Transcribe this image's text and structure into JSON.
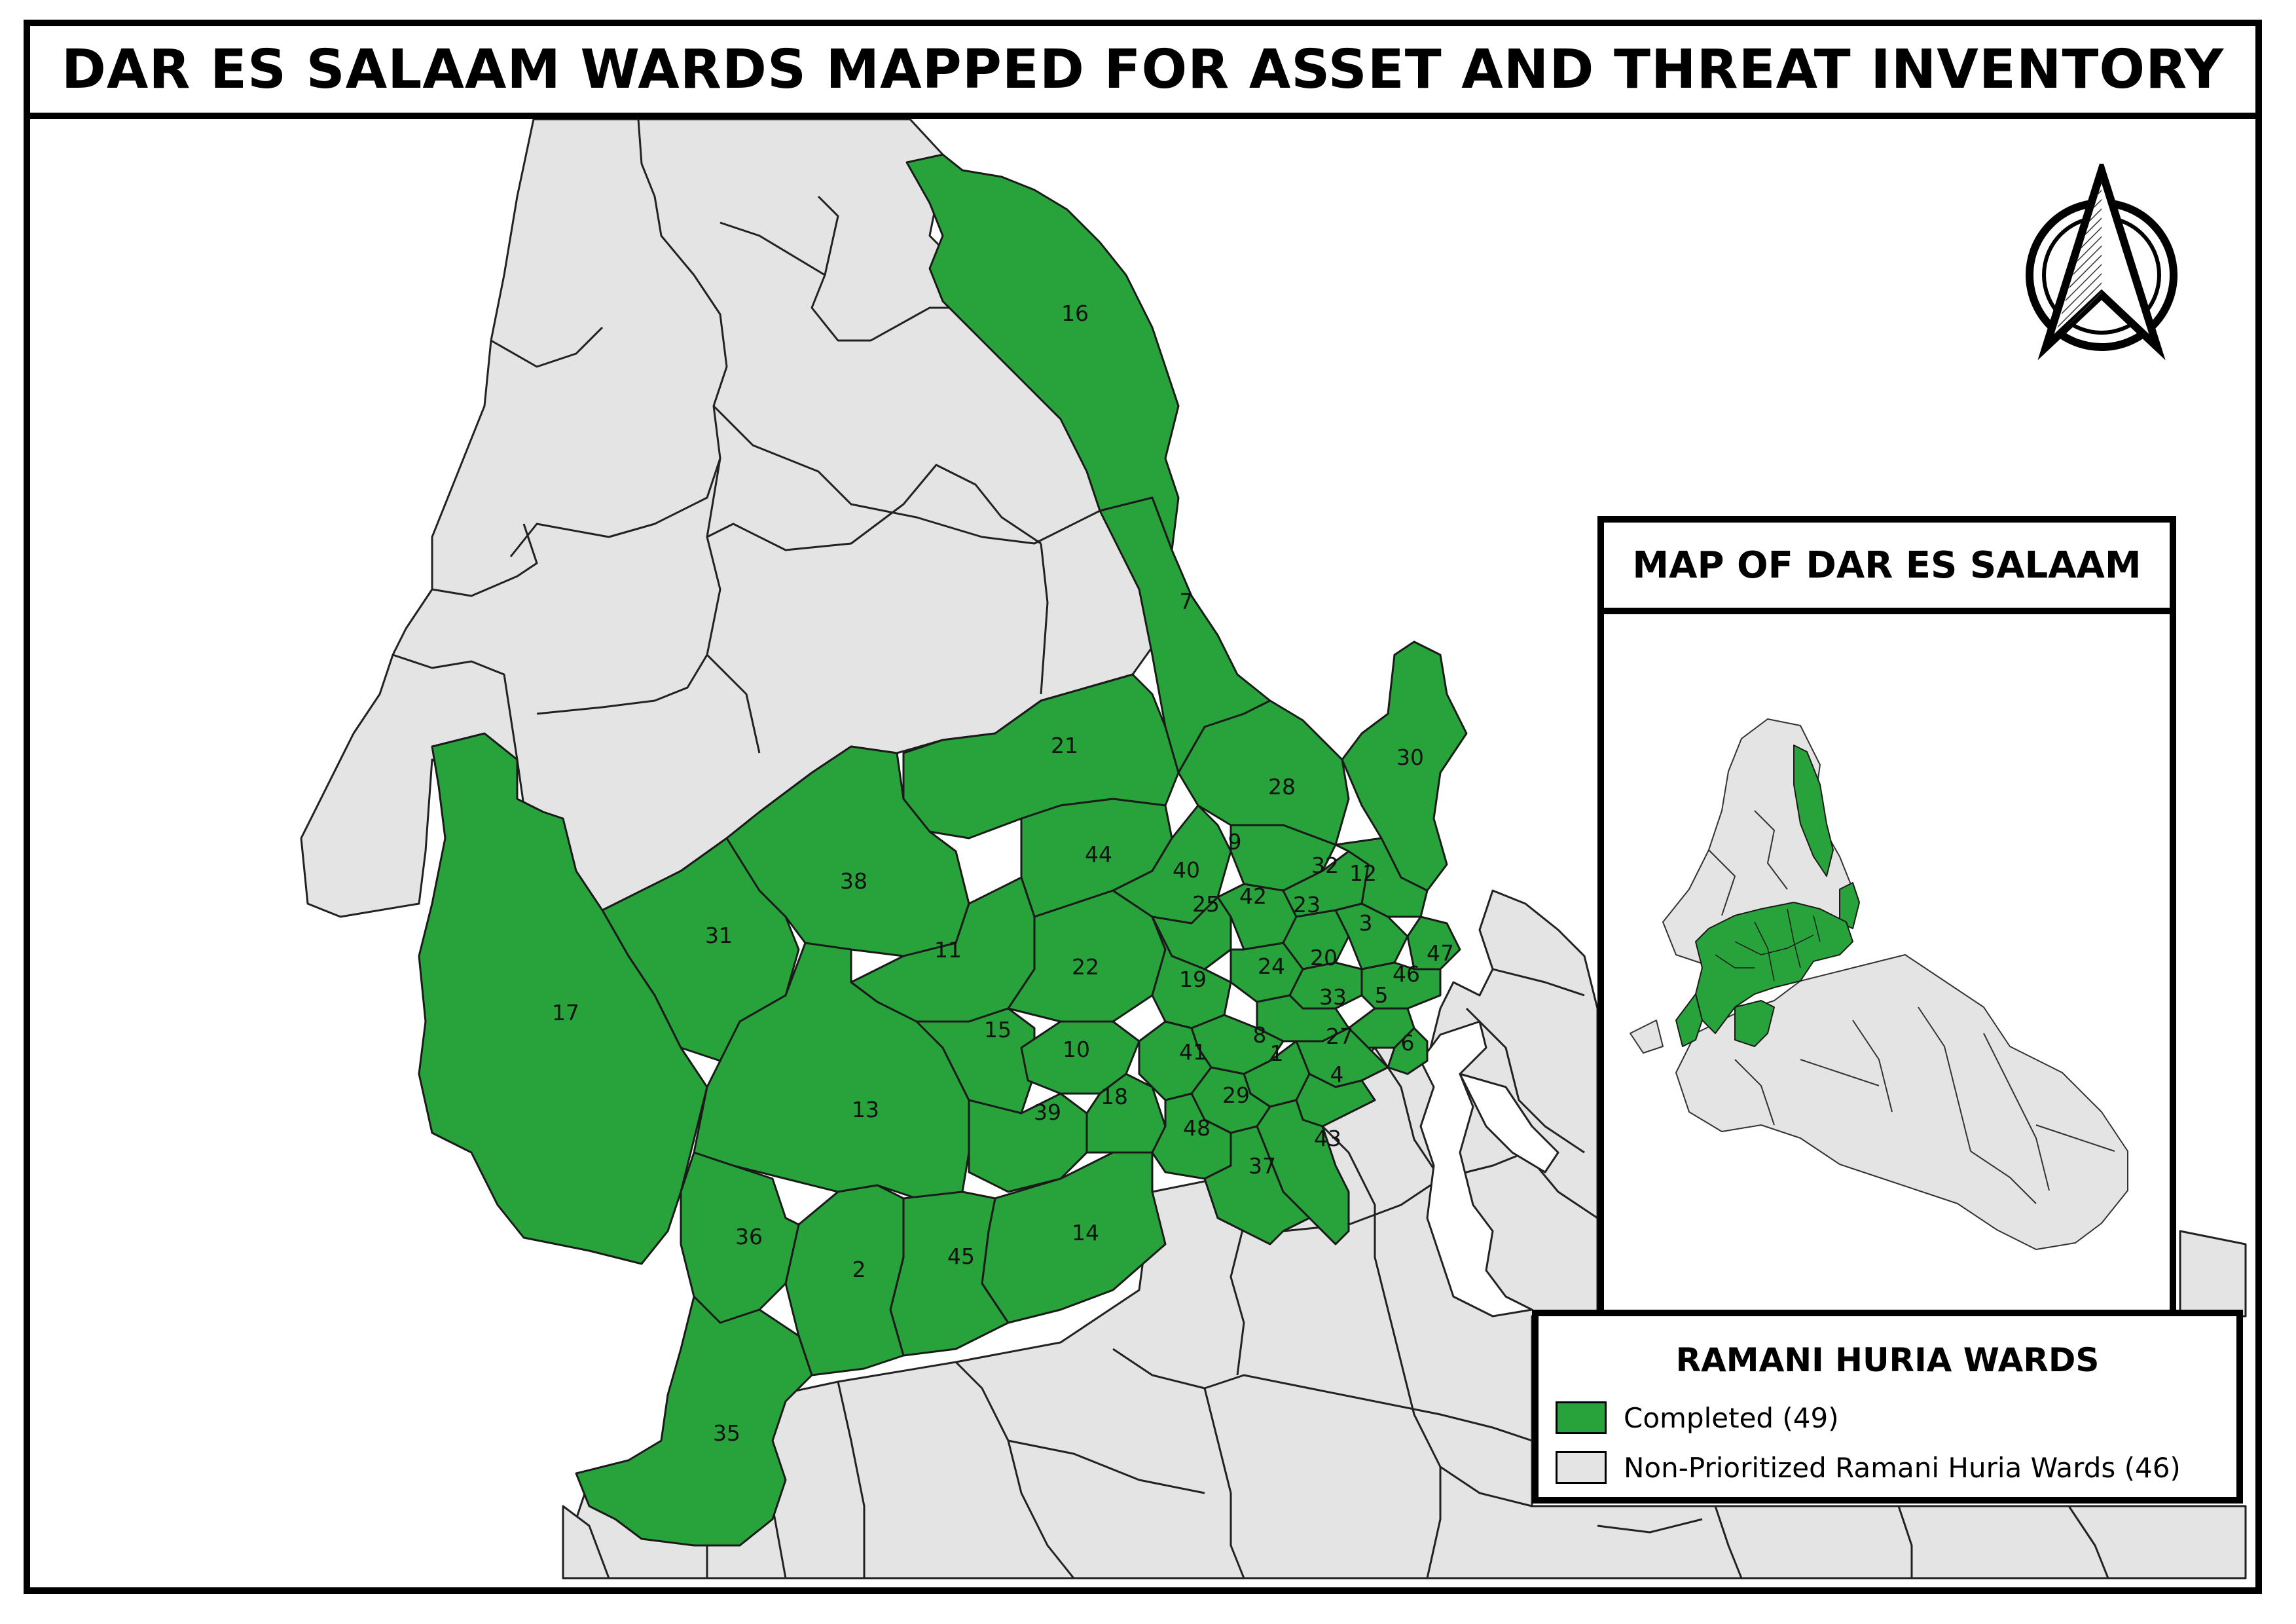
{
  "title": "DAR ES SALAAM WARDS MAPPED FOR ASSET AND THREAT INVENTORY",
  "colors": {
    "completed": "#28a33c",
    "non_prioritized": "#e4e4e4",
    "water": "#ffffff",
    "border": "#222222"
  },
  "north_arrow": {
    "icon": "north-arrow-icon"
  },
  "inset": {
    "title": "MAP OF DAR ES SALAAM"
  },
  "legend": {
    "title": "RAMANI HURIA WARDS",
    "items": [
      {
        "label": "Completed (49)",
        "color": "#28a33c"
      },
      {
        "label": "Non-Prioritized Ramani Huria Wards (46)",
        "color": "#e4e4e4"
      }
    ]
  },
  "map": {
    "ward_labels": [
      "16",
      "7",
      "30",
      "28",
      "21",
      "9",
      "32",
      "12",
      "44",
      "40",
      "42",
      "23",
      "3",
      "38",
      "25",
      "47",
      "31",
      "11",
      "22",
      "24",
      "20",
      "46",
      "19",
      "33",
      "5",
      "17",
      "15",
      "27",
      "6",
      "10",
      "8",
      "1",
      "41",
      "4",
      "13",
      "18",
      "29",
      "39",
      "48",
      "43",
      "37",
      "36",
      "14",
      "45",
      "2",
      "35"
    ]
  }
}
